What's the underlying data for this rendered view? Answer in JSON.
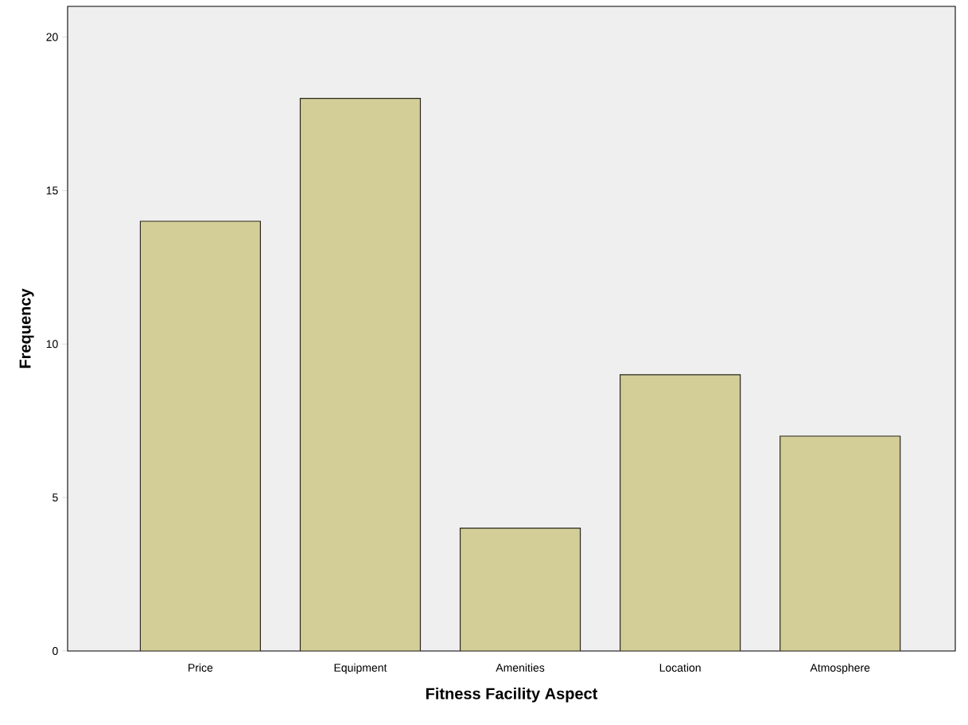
{
  "chart_data": {
    "type": "bar",
    "xlabel": "Fitness Facility Aspect",
    "ylabel": "Frequency",
    "categories": [
      "Price",
      "Equipment",
      "Amenities",
      "Location",
      "Atmosphere"
    ],
    "values": [
      14,
      18,
      4,
      9,
      7
    ],
    "color": "#d3ce97",
    "ylim": [
      0,
      21
    ],
    "yticks": [
      0,
      5,
      10,
      15,
      20
    ],
    "grid": false
  }
}
